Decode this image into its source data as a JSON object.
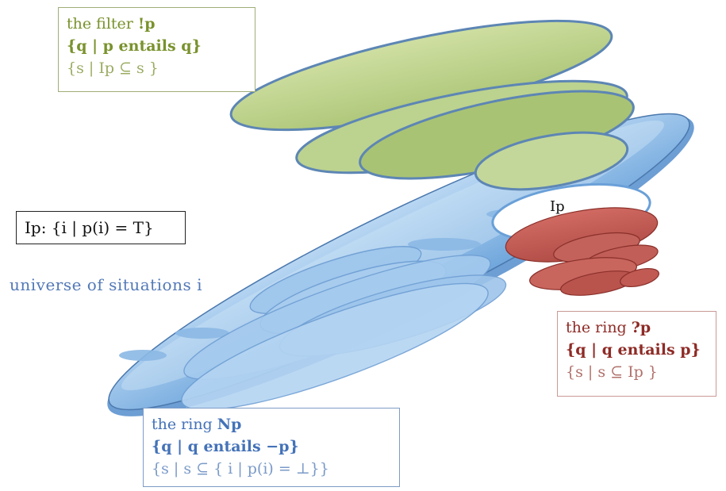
{
  "colors": {
    "filter_green": "#79922d",
    "ring_blue": "#4472b8",
    "ring_red": "#8e2b26",
    "universe_blue": "#5379b7"
  },
  "filter_box": {
    "line1_prefix": "the filter ",
    "line1_bold": "!p",
    "line2": "{q  |  p entails q}",
    "line3": "{s | Ip ⊆ s }"
  },
  "ip_definition": "Ip: {i | p(i) = T}",
  "universe_label": "universe of situations i",
  "ip_marker": "Ip",
  "ring_q_box": {
    "line1_prefix": "the ring ",
    "line1_bold": "?p",
    "line2": "{q  |  q entails p}",
    "line3": "{s | s ⊆ Ip }"
  },
  "ring_neg_box": {
    "line1_prefix": "the ring ",
    "line1_bold": "Np",
    "line2": "{q  |  q entails −p}",
    "line3": "{s | s ⊆ { i | p(i) = ⊥}}"
  }
}
